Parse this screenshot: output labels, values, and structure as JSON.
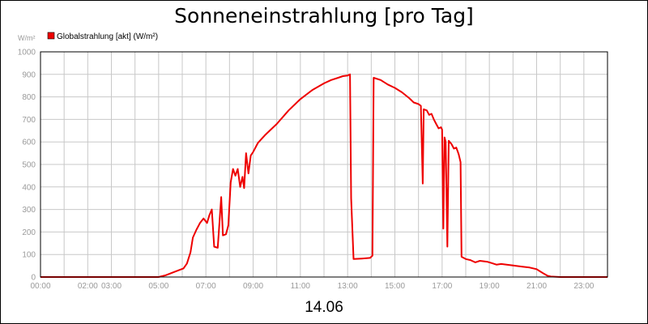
{
  "chart_data": {
    "type": "line",
    "title": "Sonneneinstrahlung [pro Tag]",
    "ylabel": "W/m²",
    "xlabel": "14.06",
    "ylim": [
      0,
      1000
    ],
    "xlim": [
      0,
      24
    ],
    "grid": true,
    "legend_position": "top-left",
    "yticks": [
      "0",
      "100",
      "200",
      "300",
      "400",
      "500",
      "600",
      "700",
      "800",
      "900",
      "1000"
    ],
    "xticks": [
      {
        "x": 0,
        "label": "00:00"
      },
      {
        "x": 2,
        "label": "02:00"
      },
      {
        "x": 3,
        "label": "03:00"
      },
      {
        "x": 5,
        "label": "05:00"
      },
      {
        "x": 7,
        "label": "07:00"
      },
      {
        "x": 9,
        "label": "09:00"
      },
      {
        "x": 11,
        "label": "11:00"
      },
      {
        "x": 13,
        "label": "13:00"
      },
      {
        "x": 15,
        "label": "15:00"
      },
      {
        "x": 17,
        "label": "17:00"
      },
      {
        "x": 19,
        "label": "19:00"
      },
      {
        "x": 21,
        "label": "21:00"
      },
      {
        "x": 23,
        "label": "23:00"
      }
    ],
    "series": [
      {
        "name": "Globalstrahlung [akt] (W/m²)",
        "color": "#ee0000",
        "points": [
          [
            0,
            0
          ],
          [
            5.0,
            0
          ],
          [
            5.3,
            8
          ],
          [
            5.6,
            20
          ],
          [
            5.9,
            32
          ],
          [
            6.05,
            38
          ],
          [
            6.2,
            60
          ],
          [
            6.35,
            110
          ],
          [
            6.45,
            175
          ],
          [
            6.6,
            210
          ],
          [
            6.75,
            240
          ],
          [
            6.9,
            260
          ],
          [
            7.05,
            240
          ],
          [
            7.15,
            275
          ],
          [
            7.25,
            300
          ],
          [
            7.35,
            135
          ],
          [
            7.5,
            130
          ],
          [
            7.65,
            355
          ],
          [
            7.72,
            185
          ],
          [
            7.85,
            190
          ],
          [
            7.95,
            230
          ],
          [
            8.05,
            420
          ],
          [
            8.15,
            480
          ],
          [
            8.25,
            450
          ],
          [
            8.35,
            480
          ],
          [
            8.45,
            400
          ],
          [
            8.55,
            445
          ],
          [
            8.62,
            395
          ],
          [
            8.7,
            550
          ],
          [
            8.8,
            460
          ],
          [
            8.9,
            540
          ],
          [
            9.0,
            555
          ],
          [
            9.2,
            595
          ],
          [
            9.5,
            630
          ],
          [
            10.0,
            680
          ],
          [
            10.5,
            740
          ],
          [
            11.0,
            790
          ],
          [
            11.5,
            830
          ],
          [
            12.0,
            860
          ],
          [
            12.3,
            875
          ],
          [
            12.6,
            885
          ],
          [
            12.8,
            892
          ],
          [
            13.0,
            895
          ],
          [
            13.1,
            900
          ],
          [
            13.15,
            350
          ],
          [
            13.25,
            80
          ],
          [
            13.6,
            82
          ],
          [
            13.95,
            85
          ],
          [
            14.05,
            95
          ],
          [
            14.1,
            885
          ],
          [
            14.4,
            875
          ],
          [
            14.7,
            855
          ],
          [
            15.0,
            840
          ],
          [
            15.3,
            820
          ],
          [
            15.6,
            795
          ],
          [
            15.8,
            775
          ],
          [
            16.0,
            768
          ],
          [
            16.1,
            760
          ],
          [
            16.18,
            415
          ],
          [
            16.22,
            745
          ],
          [
            16.35,
            740
          ],
          [
            16.45,
            720
          ],
          [
            16.55,
            725
          ],
          [
            16.65,
            700
          ],
          [
            16.75,
            680
          ],
          [
            16.85,
            660
          ],
          [
            16.95,
            665
          ],
          [
            17.0,
            655
          ],
          [
            17.05,
            215
          ],
          [
            17.1,
            620
          ],
          [
            17.15,
            600
          ],
          [
            17.22,
            135
          ],
          [
            17.28,
            605
          ],
          [
            17.4,
            590
          ],
          [
            17.5,
            570
          ],
          [
            17.6,
            575
          ],
          [
            17.7,
            545
          ],
          [
            17.78,
            510
          ],
          [
            17.82,
            90
          ],
          [
            18.0,
            80
          ],
          [
            18.2,
            75
          ],
          [
            18.4,
            65
          ],
          [
            18.6,
            72
          ],
          [
            18.9,
            68
          ],
          [
            19.1,
            62
          ],
          [
            19.3,
            55
          ],
          [
            19.5,
            58
          ],
          [
            19.8,
            54
          ],
          [
            20.1,
            50
          ],
          [
            20.4,
            46
          ],
          [
            20.7,
            42
          ],
          [
            21.0,
            35
          ],
          [
            21.15,
            25
          ],
          [
            21.3,
            15
          ],
          [
            21.45,
            6
          ],
          [
            21.6,
            2
          ],
          [
            22.0,
            0
          ],
          [
            24,
            0
          ]
        ]
      }
    ]
  }
}
